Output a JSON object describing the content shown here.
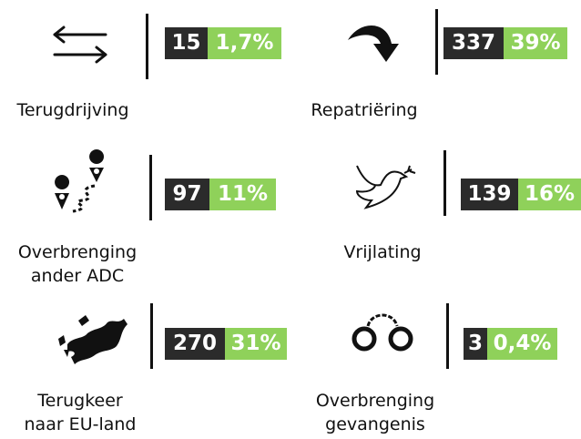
{
  "items": [
    {
      "lines": [
        "Terugdrijving"
      ],
      "count": 15,
      "percent": "1,7%"
    },
    {
      "lines": [
        "Repatriëring"
      ],
      "count": 337,
      "percent": "39%"
    },
    {
      "lines": [
        "Overbrenging",
        "ander ADC"
      ],
      "count": 97,
      "percent": "11%"
    },
    {
      "lines": [
        "Vrijlating"
      ],
      "count": 139,
      "percent": "16%"
    },
    {
      "lines": [
        "Terugkeer",
        "naar EU-land"
      ],
      "count": 270,
      "percent": "31%"
    },
    {
      "lines": [
        "Overbrenging",
        "gevangenis"
      ],
      "count": 3,
      "percent": "0,4%"
    }
  ]
}
